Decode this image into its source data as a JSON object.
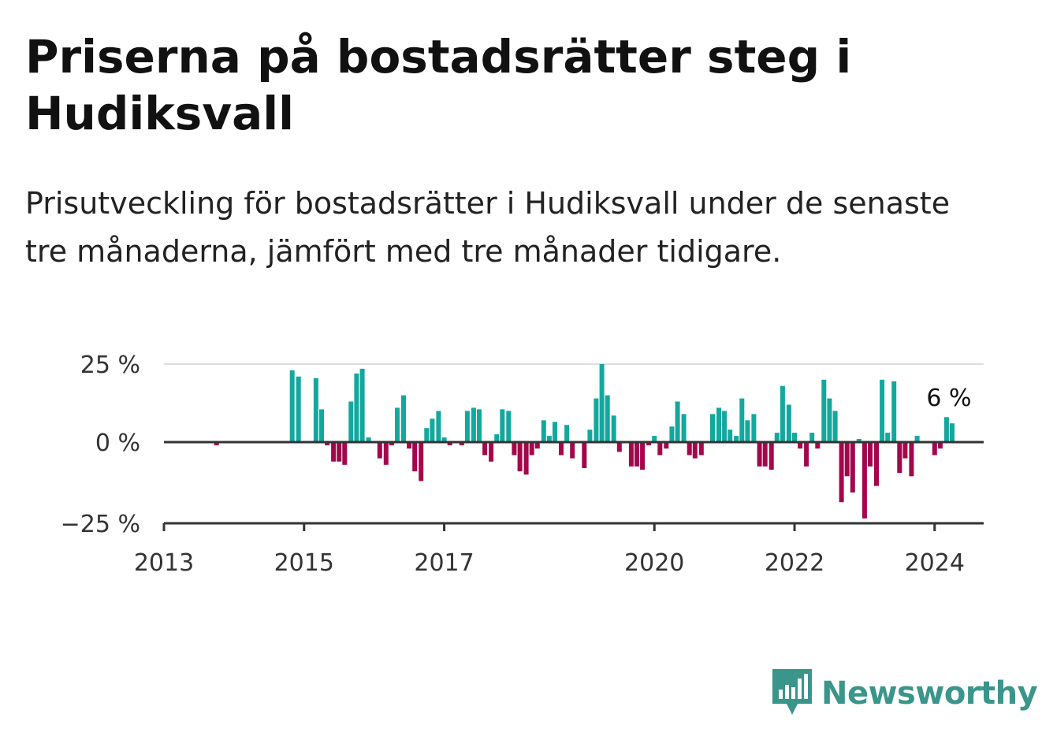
{
  "title": "Priserna på bostadsrätter steg i Hudiksvall",
  "subtitle": "Prisutveckling för bostadsrätter i Hudiksvall under de senaste tre månaderna, jämfört med tre månader tidigare.",
  "brand": "Newsworthy",
  "colors": {
    "positive": "#13a89e",
    "negative": "#a3064b",
    "grid": "#dddddd",
    "axis": "#333333",
    "brand": "#3a958b"
  },
  "chart_data": {
    "type": "bar",
    "ylim": [
      -25,
      25
    ],
    "y_ticks": [
      {
        "value": 25,
        "label": "25 %"
      },
      {
        "value": 0,
        "label": "0 %"
      },
      {
        "value": -25,
        "label": "−25 %"
      }
    ],
    "x_ticks": [
      {
        "value": 2013.0,
        "label": "2013"
      },
      {
        "value": 2015.0,
        "label": "2015"
      },
      {
        "value": 2017.0,
        "label": "2017"
      },
      {
        "value": 2020.0,
        "label": "2020"
      },
      {
        "value": 2022.0,
        "label": "2022"
      },
      {
        "value": 2024.0,
        "label": "2024"
      }
    ],
    "xlim": [
      2013.0,
      2024.7
    ],
    "last_label": "6 %",
    "series": [
      {
        "x": 2013.75,
        "y": -1
      },
      {
        "x": 2014.08,
        "y": 0
      },
      {
        "x": 2014.42,
        "y": 0
      },
      {
        "x": 2014.83,
        "y": 23
      },
      {
        "x": 2014.92,
        "y": 21
      },
      {
        "x": 2015.0,
        "y": 0
      },
      {
        "x": 2015.17,
        "y": 20.5
      },
      {
        "x": 2015.25,
        "y": 10.5
      },
      {
        "x": 2015.33,
        "y": -1
      },
      {
        "x": 2015.42,
        "y": -6
      },
      {
        "x": 2015.5,
        "y": -6
      },
      {
        "x": 2015.58,
        "y": -7
      },
      {
        "x": 2015.67,
        "y": 13
      },
      {
        "x": 2015.75,
        "y": 22
      },
      {
        "x": 2015.83,
        "y": 23.5
      },
      {
        "x": 2015.92,
        "y": 1.5
      },
      {
        "x": 2016.08,
        "y": -5
      },
      {
        "x": 2016.17,
        "y": -7
      },
      {
        "x": 2016.25,
        "y": -1
      },
      {
        "x": 2016.33,
        "y": 11
      },
      {
        "x": 2016.42,
        "y": 15
      },
      {
        "x": 2016.5,
        "y": -2
      },
      {
        "x": 2016.58,
        "y": -9
      },
      {
        "x": 2016.67,
        "y": -12
      },
      {
        "x": 2016.75,
        "y": 4.5
      },
      {
        "x": 2016.83,
        "y": 7.5
      },
      {
        "x": 2016.92,
        "y": 10
      },
      {
        "x": 2017.0,
        "y": 1.5
      },
      {
        "x": 2017.08,
        "y": -1
      },
      {
        "x": 2017.17,
        "y": 0
      },
      {
        "x": 2017.25,
        "y": -1
      },
      {
        "x": 2017.33,
        "y": 10
      },
      {
        "x": 2017.42,
        "y": 11
      },
      {
        "x": 2017.5,
        "y": 10.5
      },
      {
        "x": 2017.58,
        "y": -4
      },
      {
        "x": 2017.67,
        "y": -6
      },
      {
        "x": 2017.75,
        "y": 2.5
      },
      {
        "x": 2017.83,
        "y": 10.5
      },
      {
        "x": 2017.92,
        "y": 10
      },
      {
        "x": 2018.0,
        "y": -4
      },
      {
        "x": 2018.08,
        "y": -9
      },
      {
        "x": 2018.17,
        "y": -10
      },
      {
        "x": 2018.25,
        "y": -4
      },
      {
        "x": 2018.33,
        "y": -2
      },
      {
        "x": 2018.42,
        "y": 7
      },
      {
        "x": 2018.5,
        "y": 2
      },
      {
        "x": 2018.58,
        "y": 6.5
      },
      {
        "x": 2018.67,
        "y": -4
      },
      {
        "x": 2018.75,
        "y": 5.5
      },
      {
        "x": 2018.83,
        "y": -5
      },
      {
        "x": 2019.0,
        "y": -8
      },
      {
        "x": 2019.08,
        "y": 4
      },
      {
        "x": 2019.17,
        "y": 14
      },
      {
        "x": 2019.25,
        "y": 25
      },
      {
        "x": 2019.33,
        "y": 15
      },
      {
        "x": 2019.42,
        "y": 8.5
      },
      {
        "x": 2019.5,
        "y": -3
      },
      {
        "x": 2019.67,
        "y": -7.5
      },
      {
        "x": 2019.75,
        "y": -7.5
      },
      {
        "x": 2019.83,
        "y": -8.5
      },
      {
        "x": 2019.92,
        "y": -1
      },
      {
        "x": 2020.0,
        "y": 2
      },
      {
        "x": 2020.08,
        "y": -4
      },
      {
        "x": 2020.17,
        "y": -2
      },
      {
        "x": 2020.25,
        "y": 5
      },
      {
        "x": 2020.33,
        "y": 13
      },
      {
        "x": 2020.42,
        "y": 9
      },
      {
        "x": 2020.5,
        "y": -4
      },
      {
        "x": 2020.58,
        "y": -5
      },
      {
        "x": 2020.67,
        "y": -4
      },
      {
        "x": 2020.83,
        "y": 9
      },
      {
        "x": 2020.92,
        "y": 11
      },
      {
        "x": 2021.0,
        "y": 10
      },
      {
        "x": 2021.08,
        "y": 4
      },
      {
        "x": 2021.17,
        "y": 2
      },
      {
        "x": 2021.25,
        "y": 14
      },
      {
        "x": 2021.33,
        "y": 7
      },
      {
        "x": 2021.42,
        "y": 9
      },
      {
        "x": 2021.5,
        "y": -7.5
      },
      {
        "x": 2021.58,
        "y": -7.5
      },
      {
        "x": 2021.67,
        "y": -8.5
      },
      {
        "x": 2021.75,
        "y": 3
      },
      {
        "x": 2021.83,
        "y": 18
      },
      {
        "x": 2021.92,
        "y": 12
      },
      {
        "x": 2022.0,
        "y": 3
      },
      {
        "x": 2022.08,
        "y": -2
      },
      {
        "x": 2022.17,
        "y": -7.5
      },
      {
        "x": 2022.25,
        "y": 3
      },
      {
        "x": 2022.33,
        "y": -2
      },
      {
        "x": 2022.42,
        "y": 20
      },
      {
        "x": 2022.5,
        "y": 14
      },
      {
        "x": 2022.58,
        "y": 10
      },
      {
        "x": 2022.67,
        "y": -18.5
      },
      {
        "x": 2022.75,
        "y": -10.5
      },
      {
        "x": 2022.83,
        "y": -15.5
      },
      {
        "x": 2022.92,
        "y": 1
      },
      {
        "x": 2023.0,
        "y": -23.5
      },
      {
        "x": 2023.08,
        "y": -7.5
      },
      {
        "x": 2023.17,
        "y": -13.5
      },
      {
        "x": 2023.25,
        "y": 20
      },
      {
        "x": 2023.33,
        "y": 3
      },
      {
        "x": 2023.42,
        "y": 19.5
      },
      {
        "x": 2023.5,
        "y": -9.5
      },
      {
        "x": 2023.58,
        "y": -5
      },
      {
        "x": 2023.67,
        "y": -10.5
      },
      {
        "x": 2023.75,
        "y": 2
      },
      {
        "x": 2024.0,
        "y": -4
      },
      {
        "x": 2024.08,
        "y": -2
      },
      {
        "x": 2024.17,
        "y": 8
      },
      {
        "x": 2024.25,
        "y": 6
      }
    ]
  }
}
